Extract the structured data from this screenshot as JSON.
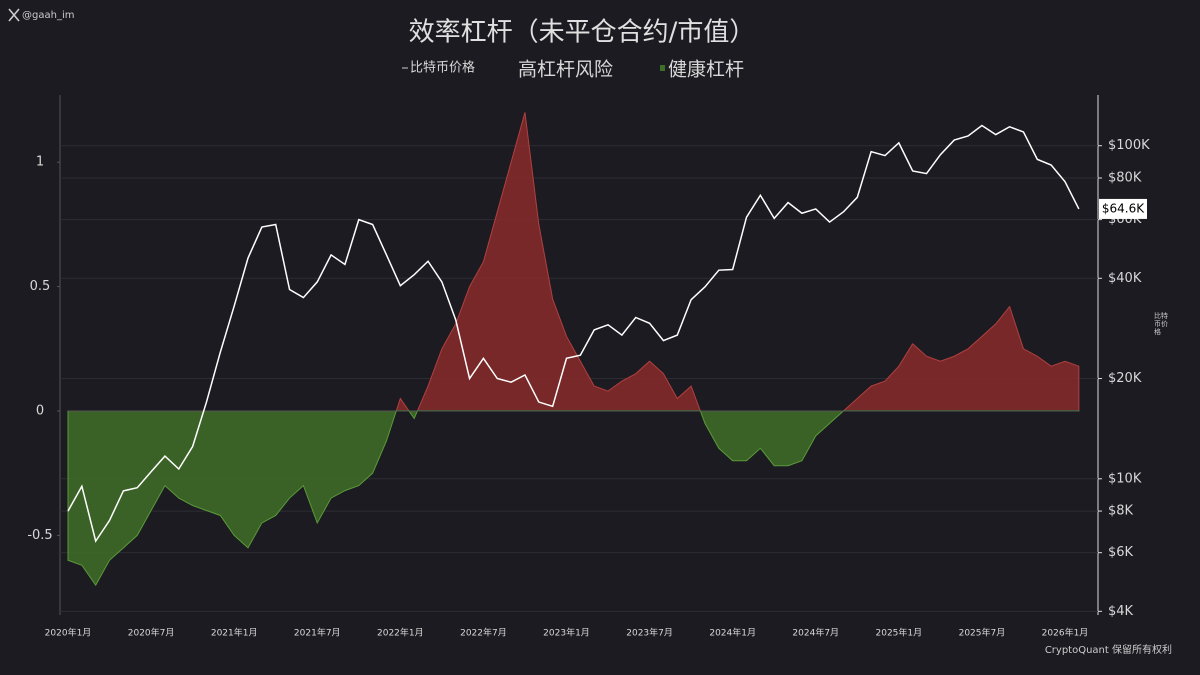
{
  "watermark": "@gaah_im",
  "footer": "CryptoQuant 保留所有权利",
  "chart_data": {
    "type": "area-line",
    "title": "效率杠杆（未平仓合约/市值）",
    "legend": [
      {
        "name": "高杠杆风险",
        "color": "#8a2a2a"
      },
      {
        "name": "健康杠杆",
        "color": "#3f6e28"
      }
    ],
    "x": [
      "2020-01",
      "2020-02",
      "2020-03",
      "2020-04",
      "2020-05",
      "2020-06",
      "2020-07",
      "2020-08",
      "2020-09",
      "2020-10",
      "2020-11",
      "2020-12",
      "2021-01",
      "2021-02",
      "2021-03",
      "2021-04",
      "2021-05",
      "2021-06",
      "2021-07",
      "2021-08",
      "2021-09",
      "2021-10",
      "2021-11",
      "2021-12",
      "2022-01",
      "2022-02",
      "2022-03",
      "2022-04",
      "2022-05",
      "2022-06",
      "2022-07",
      "2022-08",
      "2022-09",
      "2022-10",
      "2022-11",
      "2022-12",
      "2023-01",
      "2023-02",
      "2023-03",
      "2023-04",
      "2023-05",
      "2023-06",
      "2023-07",
      "2023-08",
      "2023-09",
      "2023-10",
      "2023-11",
      "2023-12",
      "2024-01",
      "2024-02",
      "2024-03",
      "2024-04",
      "2024-05",
      "2024-06",
      "2024-07",
      "2024-08",
      "2024-09",
      "2024-10",
      "2024-11",
      "2024-12",
      "2025-01",
      "2025-02",
      "2025-03",
      "2025-04",
      "2025-05",
      "2025-06",
      "2025-07",
      "2025-08",
      "2025-09",
      "2025-10",
      "2025-11",
      "2025-12",
      "2026-01",
      "2026-02"
    ],
    "xticks": [
      {
        "value": "2020-01",
        "label": "2020年1月"
      },
      {
        "value": "2020-07",
        "label": "2020年7月"
      },
      {
        "value": "2021-01",
        "label": "2021年1月"
      },
      {
        "value": "2021-07",
        "label": "2021年7月"
      },
      {
        "value": "2022-01",
        "label": "2022年1月"
      },
      {
        "value": "2022-07",
        "label": "2022年7月"
      },
      {
        "value": "2023-01",
        "label": "2023年1月"
      },
      {
        "value": "2023-07",
        "label": "2023年7月"
      },
      {
        "value": "2024-01",
        "label": "2024年1月"
      },
      {
        "value": "2024-07",
        "label": "2024年7月"
      },
      {
        "value": "2025-01",
        "label": "2025年1月"
      },
      {
        "value": "2025-07",
        "label": "2025年7月"
      },
      {
        "value": "2026-01",
        "label": "2026年1月"
      }
    ],
    "series": [
      {
        "values": [
          -0.6,
          -0.62,
          -0.7,
          -0.6,
          -0.55,
          -0.5,
          -0.4,
          -0.3,
          -0.35,
          -0.38,
          -0.4,
          -0.42,
          -0.5,
          -0.55,
          -0.45,
          -0.42,
          -0.35,
          -0.3,
          -0.45,
          -0.35,
          -0.32,
          -0.3,
          -0.25,
          -0.12,
          0.05,
          -0.03,
          0.1,
          0.25,
          0.35,
          0.5,
          0.6,
          0.8,
          1.0,
          1.2,
          0.75,
          0.45,
          0.3,
          0.2,
          0.1,
          0.08,
          0.12,
          0.15,
          0.2,
          0.15,
          0.05,
          0.1,
          -0.05,
          -0.15,
          -0.2,
          -0.2,
          -0.15,
          -0.22,
          -0.22,
          -0.2,
          -0.1,
          -0.05,
          0,
          0.05,
          0.1,
          0.12,
          0.18,
          0.27,
          0.22,
          0.2,
          0.22,
          0.25,
          0.3,
          0.35,
          0.42,
          0.25,
          0.22,
          0.18,
          0.2,
          0.18
        ]
      },
      {
        "name": "比特币价格",
        "axis": "y2",
        "color": "#ffffff",
        "values": [
          8000,
          9500,
          6500,
          7500,
          9200,
          9400,
          10500,
          11700,
          10700,
          12500,
          17000,
          24000,
          33000,
          46000,
          57000,
          58000,
          37000,
          35000,
          39000,
          47000,
          44000,
          60000,
          58000,
          47000,
          38000,
          41000,
          45000,
          39000,
          30000,
          20000,
          23000,
          20000,
          19500,
          20500,
          17000,
          16500,
          23000,
          23500,
          28000,
          29000,
          27000,
          30500,
          29300,
          26000,
          27000,
          34500,
          37700,
          42300,
          42500,
          61000,
          71000,
          60500,
          67500,
          62700,
          64600,
          59000,
          63300,
          70000,
          96000,
          93400,
          102000,
          84000,
          82500,
          94000,
          104000,
          107000,
          115000,
          108000,
          114000,
          110000,
          91000,
          87500,
          78000,
          64600
        ]
      }
    ],
    "ylim": [
      -0.82,
      1.27
    ],
    "yticks": [
      -0.5,
      0,
      0.5,
      1
    ],
    "y2lim": [
      3900,
      142000
    ],
    "y2log": true,
    "y2label": "比特币价格",
    "y2ticks": [
      {
        "value": 4000,
        "label": "$4K"
      },
      {
        "value": 6000,
        "label": "$6K"
      },
      {
        "value": 8000,
        "label": "$8K"
      },
      {
        "value": 10000,
        "label": "$10K"
      },
      {
        "value": 20000,
        "label": "$20K"
      },
      {
        "value": 40000,
        "label": "$40K"
      },
      {
        "value": 60000,
        "label": "$60K"
      },
      {
        "value": 80000,
        "label": "$80K"
      },
      {
        "value": 100000,
        "label": "$100K"
      }
    ],
    "price_marker": {
      "value": 64600,
      "label": "$64.6K"
    },
    "grid": true
  }
}
